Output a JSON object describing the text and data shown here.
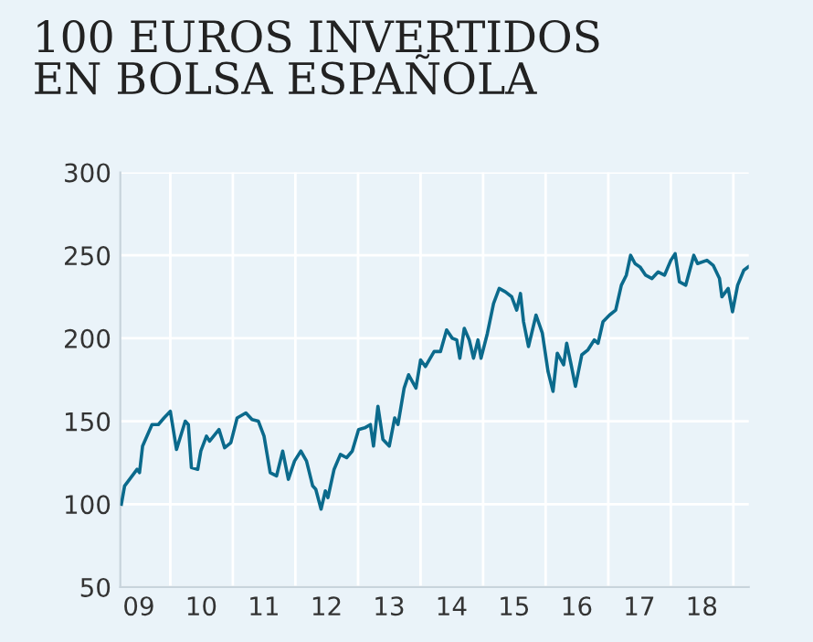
{
  "chart_data": {
    "type": "line",
    "title": "100 EUROS INVERTIDOS\nEN BOLSA ESPAÑOLA",
    "x": [
      "2009-03-21",
      "2009-04-09",
      "2009-06-21",
      "2009-07-05",
      "2009-07-23",
      "2009-09-16",
      "2009-10-23",
      "2009-11-25",
      "2010-01-01",
      "2010-02-06",
      "2010-03-29",
      "2010-04-16",
      "2010-05-04",
      "2010-06-10",
      "2010-06-28",
      "2010-07-31",
      "2010-08-18",
      "2010-10-12",
      "2010-11-14",
      "2010-12-20",
      "2011-01-26",
      "2011-03-18",
      "2011-04-23",
      "2011-05-30",
      "2011-07-02",
      "2011-08-07",
      "2011-09-13",
      "2011-10-19",
      "2011-11-21",
      "2011-12-27",
      "2012-02-02",
      "2012-03-06",
      "2012-04-11",
      "2012-04-29",
      "2012-05-30",
      "2012-06-24",
      "2012-07-09",
      "2012-08-14",
      "2012-09-20",
      "2012-10-26",
      "2012-11-28",
      "2013-01-04",
      "2013-02-09",
      "2013-03-14",
      "2013-04-01",
      "2013-04-27",
      "2013-05-26",
      "2013-07-02",
      "2013-08-03",
      "2013-08-22",
      "2013-09-27",
      "2013-10-23",
      "2013-12-05",
      "2014-01-01",
      "2014-01-29",
      "2014-03-21",
      "2014-04-27",
      "2014-06-02",
      "2014-07-05",
      "2014-07-31",
      "2014-08-18",
      "2014-09-13",
      "2014-10-12",
      "2014-11-06",
      "2014-12-02",
      "2014-12-20",
      "2015-01-26",
      "2015-03-03",
      "2015-04-05",
      "2015-05-11",
      "2015-06-17",
      "2015-07-16",
      "2015-08-07",
      "2015-08-25",
      "2015-09-23",
      "2015-11-06",
      "2015-12-13",
      "2016-01-15",
      "2016-02-13",
      "2016-03-09",
      "2016-04-15",
      "2016-05-03",
      "2016-05-29",
      "2016-06-23",
      "2016-07-30",
      "2016-09-04",
      "2016-10-11",
      "2016-11-02",
      "2016-12-01",
      "2017-01-08",
      "2017-02-13",
      "2017-03-18",
      "2017-04-16",
      "2017-05-11",
      "2017-06-06",
      "2017-07-05",
      "2017-08-07",
      "2017-09-13",
      "2017-10-19",
      "2017-11-25",
      "2018-01-01",
      "2018-01-26",
      "2018-02-20",
      "2018-03-29",
      "2018-05-15",
      "2018-06-06",
      "2018-07-31",
      "2018-09-05",
      "2018-10-12",
      "2018-10-26",
      "2018-12-02",
      "2018-12-27",
      "2019-01-26",
      "2019-03-03",
      "2019-03-29"
    ],
    "series": [
      {
        "color": "#0b6a8c",
        "values": [
          100,
          111,
          121,
          119,
          135,
          148,
          148,
          152,
          156,
          133,
          150,
          148,
          122,
          121,
          132,
          141,
          138,
          145,
          134,
          137,
          152,
          155,
          151,
          150,
          141,
          119,
          117,
          132,
          115,
          126,
          132,
          126,
          111,
          109,
          97,
          108,
          104,
          121,
          130,
          128,
          132,
          145,
          146,
          148,
          135,
          159,
          139,
          135,
          152,
          148,
          170,
          178,
          170,
          187,
          183,
          192,
          192,
          205,
          200,
          199,
          188,
          206,
          199,
          188,
          199,
          188,
          203,
          221,
          230,
          228,
          225,
          217,
          227,
          210,
          195,
          214,
          203,
          180,
          168,
          191,
          184,
          197,
          184,
          171,
          190,
          193,
          199,
          197,
          210,
          214,
          217,
          232,
          238,
          250,
          245,
          243,
          238,
          236,
          240,
          238,
          247,
          251,
          234,
          232,
          250,
          245,
          247,
          244,
          236,
          225,
          230,
          216,
          232,
          241,
          243
        ]
      }
    ],
    "xlim": [
      "2009-03-15",
      "2019-04-01"
    ],
    "xticks": [
      {
        "value": "2009-07-01",
        "label": "09"
      },
      {
        "value": "2010-07-01",
        "label": "10"
      },
      {
        "value": "2011-07-01",
        "label": "11"
      },
      {
        "value": "2012-07-01",
        "label": "12"
      },
      {
        "value": "2013-07-01",
        "label": "13"
      },
      {
        "value": "2014-07-01",
        "label": "14"
      },
      {
        "value": "2015-07-01",
        "label": "15"
      },
      {
        "value": "2016-07-01",
        "label": "16"
      },
      {
        "value": "2017-07-01",
        "label": "17"
      },
      {
        "value": "2018-07-01",
        "label": "18"
      },
      {
        "value": "2010-01-01",
        "label": null
      },
      {
        "value": "2011-01-01",
        "label": null
      },
      {
        "value": "2012-01-01",
        "label": null
      },
      {
        "value": "2013-01-01",
        "label": null
      },
      {
        "value": "2014-01-01",
        "label": null
      },
      {
        "value": "2015-01-01",
        "label": null
      },
      {
        "value": "2016-01-01",
        "label": null
      },
      {
        "value": "2017-01-01",
        "label": null
      },
      {
        "value": "2018-01-01",
        "label": null
      },
      {
        "value": "2019-01-01",
        "label": null
      }
    ],
    "ylim": [
      50,
      300
    ],
    "yticks": [
      50,
      100,
      150,
      200,
      250,
      300
    ],
    "grid": true,
    "legend": false,
    "marker": "none",
    "line_style": "solid"
  }
}
